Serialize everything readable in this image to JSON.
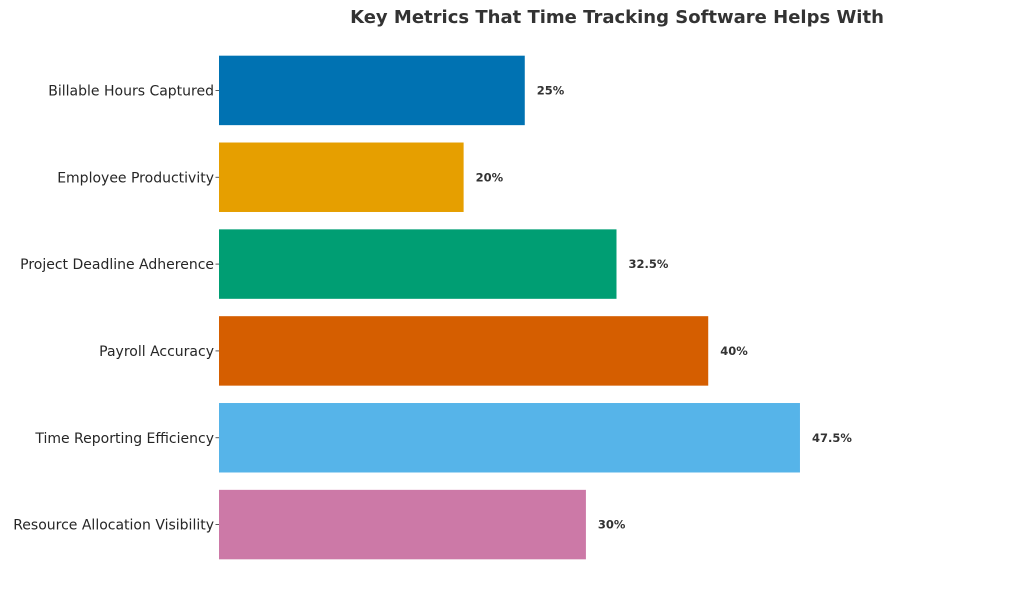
{
  "chart_data": {
    "type": "bar",
    "orientation": "horizontal",
    "title": "Key Metrics That Time Tracking Software Helps With",
    "xlabel": "",
    "ylabel": "",
    "categories": [
      "Billable Hours Captured",
      "Employee Productivity",
      "Project Deadline Adherence",
      "Payroll Accuracy",
      "Time Reporting Efficiency",
      "Resource Allocation Visibility"
    ],
    "values": [
      25,
      20,
      32.5,
      40,
      47.5,
      30
    ],
    "value_labels": [
      "25%",
      "20%",
      "32.5%",
      "40%",
      "47.5%",
      "30%"
    ],
    "colors": [
      "#0072B2",
      "#E69F00",
      "#009E73",
      "#D55E00",
      "#56B4E9",
      "#CC79A7"
    ],
    "xlim": [
      0,
      65
    ],
    "grid": false,
    "legend": "none"
  }
}
